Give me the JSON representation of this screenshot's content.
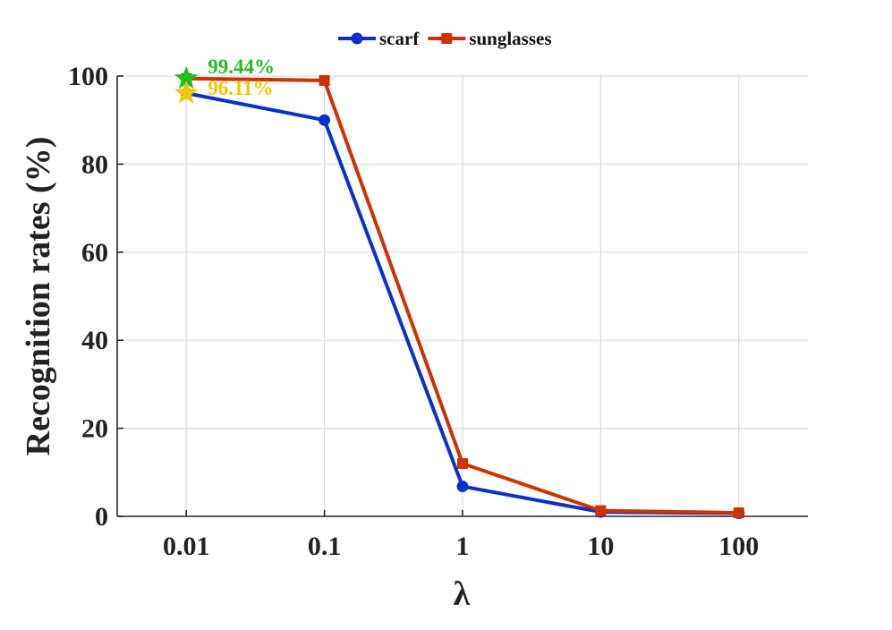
{
  "chart_data": {
    "type": "line",
    "xlabel": "λ",
    "ylabel": "Recognition rates (%)",
    "x_scale": "log",
    "categories": [
      "0.01",
      "0.1",
      "1",
      "10",
      "100"
    ],
    "x": [
      0.01,
      0.1,
      1,
      10,
      100
    ],
    "ylim": [
      0,
      100
    ],
    "yticks": [
      "0",
      "20",
      "40",
      "60",
      "80",
      "100"
    ],
    "grid": true,
    "legend_position": "top-center",
    "series": [
      {
        "name": "scarf",
        "color": "#0a2fcc",
        "marker": "circle",
        "values": [
          96.11,
          90.0,
          6.8,
          1.0,
          0.7
        ]
      },
      {
        "name": "sunglasses",
        "color": "#cc3300",
        "marker": "square",
        "values": [
          99.44,
          99.0,
          12.0,
          1.3,
          0.8
        ]
      }
    ],
    "annotations": [
      {
        "text": "99.44%",
        "x": 0.01,
        "y": 99.44,
        "color": "#1fbf1f",
        "marker": "star"
      },
      {
        "text": "96.11%",
        "x": 0.01,
        "y": 96.11,
        "color": "#f5c400",
        "marker": "star"
      }
    ]
  }
}
